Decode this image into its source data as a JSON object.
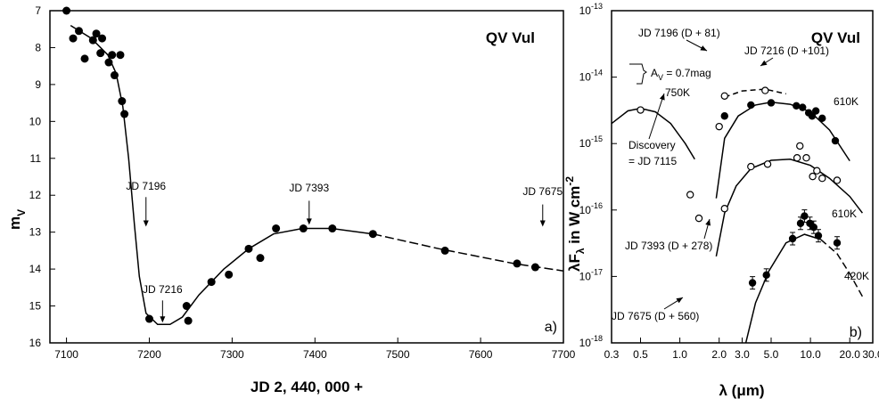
{
  "chart_data": [
    {
      "panel_label": "a)",
      "type": "scatter",
      "title": "QV Vul",
      "xlabel": "JD 2, 440, 000 +",
      "ylabel": "m",
      "ylabel_sub": "V",
      "xlim": [
        7080,
        7700
      ],
      "ylim": [
        16,
        7
      ],
      "y_inverted": true,
      "xticks": [
        7100,
        7200,
        7300,
        7400,
        7500,
        7600,
        7700
      ],
      "yticks": [
        7,
        8,
        9,
        10,
        11,
        12,
        13,
        14,
        15,
        16
      ],
      "grid": false,
      "points": [
        {
          "x": 7100,
          "y": 7.0
        },
        {
          "x": 7108,
          "y": 7.75
        },
        {
          "x": 7115,
          "y": 7.55
        },
        {
          "x": 7122,
          "y": 8.3
        },
        {
          "x": 7132,
          "y": 7.8
        },
        {
          "x": 7136,
          "y": 7.62
        },
        {
          "x": 7141,
          "y": 8.15
        },
        {
          "x": 7143,
          "y": 7.75
        },
        {
          "x": 7151,
          "y": 8.4
        },
        {
          "x": 7155,
          "y": 8.2
        },
        {
          "x": 7158,
          "y": 8.75
        },
        {
          "x": 7165,
          "y": 8.2
        },
        {
          "x": 7167,
          "y": 9.45
        },
        {
          "x": 7170,
          "y": 9.8
        },
        {
          "x": 7200,
          "y": 15.35
        },
        {
          "x": 7245,
          "y": 15.0
        },
        {
          "x": 7247,
          "y": 15.4
        },
        {
          "x": 7275,
          "y": 14.35
        },
        {
          "x": 7296,
          "y": 14.15
        },
        {
          "x": 7320,
          "y": 13.45
        },
        {
          "x": 7334,
          "y": 13.7
        },
        {
          "x": 7353,
          "y": 12.9
        },
        {
          "x": 7386,
          "y": 12.9
        },
        {
          "x": 7421,
          "y": 12.9
        },
        {
          "x": 7470,
          "y": 13.05
        },
        {
          "x": 7557,
          "y": 13.5
        },
        {
          "x": 7644,
          "y": 13.85
        },
        {
          "x": 7666,
          "y": 13.95
        }
      ],
      "curve": [
        {
          "x": 7105,
          "y": 7.4
        },
        {
          "x": 7130,
          "y": 7.75
        },
        {
          "x": 7150,
          "y": 8.2
        },
        {
          "x": 7160,
          "y": 8.7
        },
        {
          "x": 7168,
          "y": 9.6
        },
        {
          "x": 7175,
          "y": 11.0
        },
        {
          "x": 7182,
          "y": 12.8
        },
        {
          "x": 7188,
          "y": 14.2
        },
        {
          "x": 7196,
          "y": 15.2
        },
        {
          "x": 7210,
          "y": 15.5
        },
        {
          "x": 7225,
          "y": 15.5
        },
        {
          "x": 7240,
          "y": 15.3
        },
        {
          "x": 7260,
          "y": 14.7
        },
        {
          "x": 7290,
          "y": 14.0
        },
        {
          "x": 7320,
          "y": 13.45
        },
        {
          "x": 7350,
          "y": 13.05
        },
        {
          "x": 7385,
          "y": 12.9
        },
        {
          "x": 7420,
          "y": 12.9
        },
        {
          "x": 7470,
          "y": 13.05
        },
        {
          "x": 7550,
          "y": 13.45
        },
        {
          "x": 7640,
          "y": 13.85
        },
        {
          "x": 7700,
          "y": 14.05
        }
      ],
      "annotations": [
        {
          "text": "JD 7196",
          "x": 7196
        },
        {
          "text": "JD 7216",
          "x": 7216
        },
        {
          "text": "JD 7393",
          "x": 7393
        },
        {
          "text": "JD 7675",
          "x": 7675
        }
      ]
    },
    {
      "panel_label": "b)",
      "type": "scatter",
      "title": "QV Vul",
      "xlabel": "λ (μm)",
      "ylabel": "λF",
      "ylabel_sub": "λ",
      "ylabel_rest": " in W cm",
      "ylabel_sup": "-2",
      "x_scale": "log",
      "y_scale": "log",
      "xlim": [
        0.3,
        30.0
      ],
      "ylim": [
        1e-18,
        1e-13
      ],
      "xticks": [
        "0.3",
        "0.5",
        "1.0",
        "2.0",
        "3.0",
        "5.0",
        "10.0",
        "20.0",
        "30.0"
      ],
      "yticks": [
        {
          "base": "10",
          "exp": "-13"
        },
        {
          "base": "10",
          "exp": "-14"
        },
        {
          "base": "10",
          "exp": "-15"
        },
        {
          "base": "10",
          "exp": "-16"
        },
        {
          "base": "10",
          "exp": "-17"
        },
        {
          "base": "10",
          "exp": "-18"
        }
      ],
      "grid": false,
      "series": [
        {
          "name": "JD 7196 (D + 81)",
          "marker": "open",
          "points": [
            [
              2.0,
              1.8e-15
            ],
            [
              2.2,
              5.2e-15
            ],
            [
              4.5,
              6.3e-15
            ]
          ]
        },
        {
          "name": "JD 7216 (D +101)",
          "marker": "filled",
          "points": [
            [
              2.2,
              2.6e-15
            ],
            [
              3.5,
              3.8e-15
            ],
            [
              5.0,
              4.1e-15
            ],
            [
              7.8,
              3.7e-15
            ],
            [
              8.7,
              3.5e-15
            ],
            [
              9.7,
              2.9e-15
            ],
            [
              10.3,
              2.6e-15
            ],
            [
              11.0,
              3.1e-15
            ],
            [
              12.3,
              2.4e-15
            ],
            [
              15.5,
              1.1e-15
            ]
          ],
          "fit_label": "610K"
        },
        {
          "name": "Discovery = JD 7115",
          "marker": "open",
          "points": [
            [
              0.5,
              3.2e-15
            ]
          ],
          "fit_label": "750K"
        },
        {
          "name": "JD 7393 (D + 278)",
          "marker": "open",
          "points": [
            [
              1.2,
              1.7e-16
            ],
            [
              1.4,
              7.5e-17
            ],
            [
              2.2,
              1.05e-16
            ],
            [
              3.5,
              4.5e-16
            ],
            [
              4.7,
              4.9e-16
            ],
            [
              7.9,
              6.1e-16
            ],
            [
              8.3,
              9.2e-16
            ],
            [
              9.3,
              6.1e-16
            ],
            [
              10.4,
              3.2e-16
            ],
            [
              11.2,
              3.9e-16
            ],
            [
              12.3,
              3e-16
            ],
            [
              16.0,
              2.8e-16
            ]
          ],
          "fit_label": "610K"
        },
        {
          "name": "JD 7675 (D + 560)",
          "marker": "filled",
          "points": [
            [
              3.6,
              8e-18
            ],
            [
              4.6,
              1.05e-17
            ],
            [
              7.3,
              3.7e-17
            ],
            [
              8.4,
              6.3e-17
            ],
            [
              9.0,
              8.1e-17
            ],
            [
              9.9,
              6.3e-17
            ],
            [
              10.6,
              5.5e-17
            ],
            [
              11.5,
              4.1e-17
            ],
            [
              16.0,
              3.2e-17
            ]
          ],
          "fit_label": "420K"
        }
      ],
      "annotations": [
        {
          "text": "A",
          "sub": "V",
          "rest": " = 0.7mag"
        }
      ]
    }
  ]
}
